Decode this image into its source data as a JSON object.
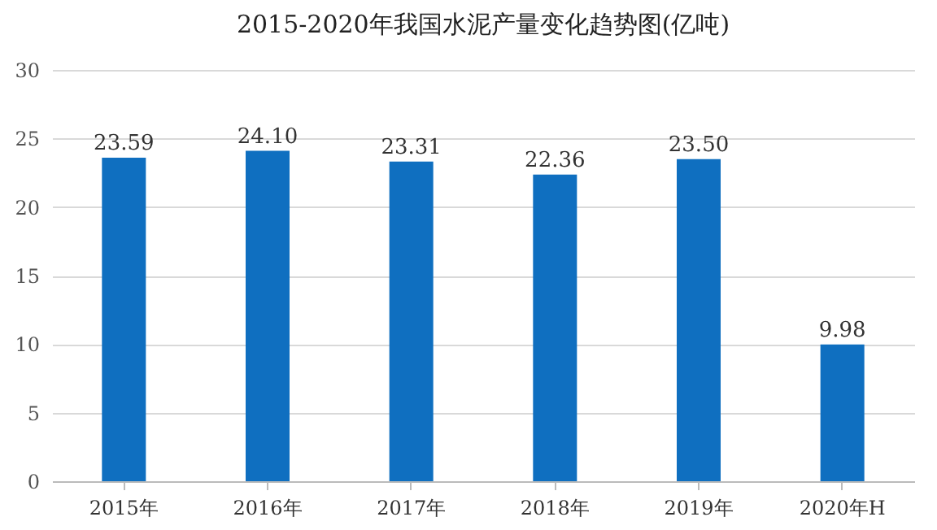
{
  "chart_data": {
    "type": "bar",
    "title": "2015-2020年我国水泥产量变化趋势图(亿吨)",
    "categories": [
      "2015年",
      "2016年",
      "2017年",
      "2018年",
      "2019年",
      "2020年H"
    ],
    "values": [
      23.59,
      24.1,
      23.31,
      22.36,
      23.5,
      9.98
    ],
    "color": "#0f6fc0",
    "ylim": [
      0,
      30
    ],
    "yticks": [
      0,
      5,
      10,
      15,
      20,
      25,
      30
    ],
    "value_labels": [
      "23.59",
      "24.10",
      "23.31",
      "22.36",
      "23.50",
      "9.98"
    ],
    "grid": "y"
  }
}
